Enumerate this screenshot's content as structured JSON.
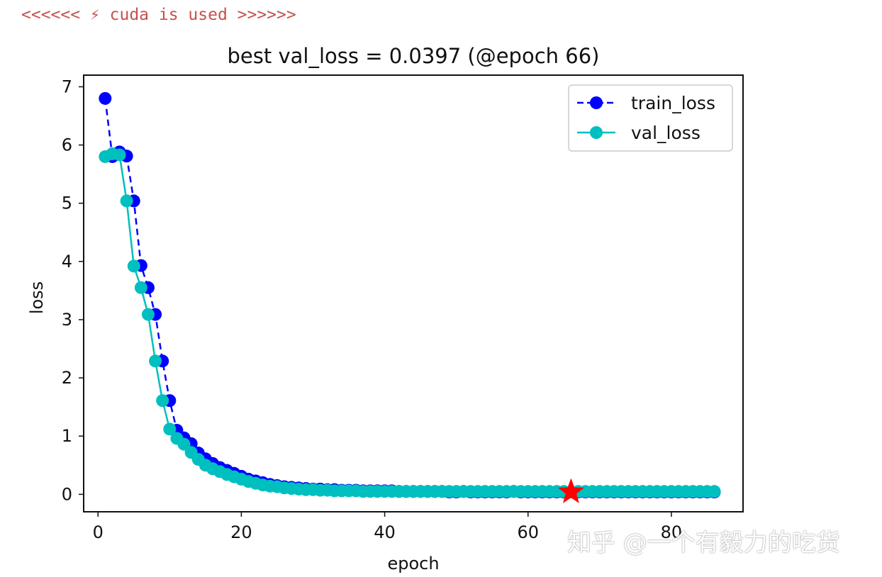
{
  "console": {
    "log_text": "<<<<<< ⚡ cuda is used >>>>>>"
  },
  "watermark": {
    "text": "知乎 @一个有毅力的吃货"
  },
  "colors": {
    "train": "#0000ff",
    "val": "#00bfbf",
    "best_marker": "#ff0000",
    "log": "#c7504f"
  },
  "chart_data": {
    "type": "line",
    "title": "best val_loss = 0.0397 (@epoch 66)",
    "xlabel": "epoch",
    "ylabel": "loss",
    "xlim": [
      -2,
      90
    ],
    "ylim": [
      -0.3,
      7.2
    ],
    "xticks": [
      0,
      20,
      40,
      60,
      80
    ],
    "yticks": [
      0,
      1,
      2,
      3,
      4,
      5,
      6,
      7
    ],
    "legend_position": "top-right",
    "x": [
      1,
      2,
      3,
      4,
      5,
      6,
      7,
      8,
      9,
      10,
      11,
      12,
      13,
      14,
      15,
      16,
      17,
      18,
      19,
      20,
      21,
      22,
      23,
      24,
      25,
      26,
      27,
      28,
      29,
      30,
      31,
      32,
      33,
      34,
      35,
      36,
      37,
      38,
      39,
      40,
      41,
      42,
      43,
      44,
      45,
      46,
      47,
      48,
      49,
      50,
      51,
      52,
      53,
      54,
      55,
      56,
      57,
      58,
      59,
      60,
      61,
      62,
      63,
      64,
      65,
      66,
      67,
      68,
      69,
      70,
      71,
      72,
      73,
      74,
      75,
      76,
      77,
      78,
      79,
      80,
      81,
      82,
      83,
      84,
      85,
      86
    ],
    "series": [
      {
        "name": "train_loss",
        "style": "dashed",
        "values": [
          6.8,
          5.8,
          5.88,
          5.81,
          5.04,
          3.93,
          3.55,
          3.09,
          2.29,
          1.61,
          1.1,
          0.97,
          0.87,
          0.71,
          0.61,
          0.53,
          0.46,
          0.41,
          0.36,
          0.31,
          0.26,
          0.23,
          0.2,
          0.17,
          0.15,
          0.13,
          0.12,
          0.11,
          0.1,
          0.09,
          0.09,
          0.08,
          0.08,
          0.07,
          0.07,
          0.07,
          0.06,
          0.06,
          0.06,
          0.06,
          0.06,
          0.05,
          0.05,
          0.05,
          0.05,
          0.05,
          0.05,
          0.05,
          0.04,
          0.04,
          0.05,
          0.04,
          0.04,
          0.04,
          0.04,
          0.04,
          0.04,
          0.05,
          0.04,
          0.04,
          0.04,
          0.04,
          0.04,
          0.04,
          0.04,
          0.04,
          0.04,
          0.04,
          0.04,
          0.04,
          0.04,
          0.04,
          0.04,
          0.04,
          0.04,
          0.04,
          0.04,
          0.04,
          0.04,
          0.04,
          0.04,
          0.04,
          0.04,
          0.04,
          0.04,
          0.04
        ]
      },
      {
        "name": "val_loss",
        "style": "solid",
        "values": [
          5.8,
          5.85,
          5.83,
          5.04,
          3.92,
          3.55,
          3.09,
          2.29,
          1.61,
          1.12,
          0.96,
          0.86,
          0.72,
          0.6,
          0.5,
          0.44,
          0.39,
          0.34,
          0.3,
          0.26,
          0.22,
          0.19,
          0.16,
          0.14,
          0.13,
          0.11,
          0.1,
          0.09,
          0.08,
          0.08,
          0.07,
          0.07,
          0.06,
          0.06,
          0.06,
          0.06,
          0.05,
          0.05,
          0.05,
          0.05,
          0.05,
          0.05,
          0.05,
          0.05,
          0.05,
          0.05,
          0.05,
          0.05,
          0.05,
          0.05,
          0.05,
          0.05,
          0.05,
          0.05,
          0.05,
          0.05,
          0.05,
          0.05,
          0.05,
          0.05,
          0.05,
          0.05,
          0.05,
          0.05,
          0.05,
          0.04,
          0.05,
          0.05,
          0.05,
          0.05,
          0.05,
          0.05,
          0.05,
          0.05,
          0.05,
          0.05,
          0.05,
          0.05,
          0.05,
          0.05,
          0.05,
          0.05,
          0.05,
          0.05,
          0.05,
          0.05
        ]
      }
    ],
    "best_point": {
      "epoch": 66,
      "val_loss": 0.0397
    }
  }
}
